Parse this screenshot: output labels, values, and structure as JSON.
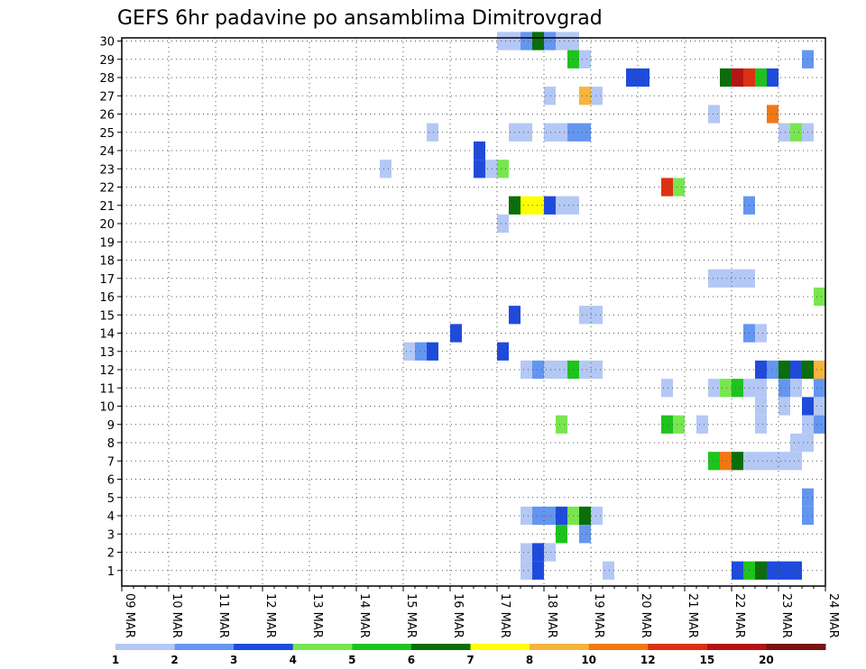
{
  "chart_data": {
    "type": "heatmap",
    "title": "GEFS 6hr padavine po ansamblima Dimitrovgrad",
    "xlabel": "",
    "ylabel": "",
    "x_tick_labels": [
      "09 MAR",
      "10 MAR",
      "11 MAR",
      "12 MAR",
      "13 MAR",
      "14 MAR",
      "15 MAR",
      "16 MAR",
      "17 MAR",
      "18 MAR",
      "19 MAR",
      "20 MAR",
      "21 MAR",
      "22 MAR",
      "23 MAR",
      "24 MAR"
    ],
    "y_tick_labels": [
      "1",
      "2",
      "3",
      "4",
      "5",
      "6",
      "7",
      "8",
      "9",
      "10",
      "11",
      "12",
      "13",
      "14",
      "15",
      "16",
      "17",
      "18",
      "19",
      "20",
      "21",
      "22",
      "23",
      "24",
      "25",
      "26",
      "27",
      "28",
      "29",
      "30"
    ],
    "x_unit": "6h steps from 09 MAR 00Z (4 steps per day)",
    "y_unit": "ensemble member",
    "colorbar": {
      "labels": [
        "1",
        "2",
        "3",
        "4",
        "5",
        "6",
        "7",
        "8",
        "10",
        "12",
        "15",
        "20"
      ],
      "bin_colors": [
        "#b4c8f5",
        "#6496f0",
        "#1e4bdc",
        "#78e650",
        "#1ec31e",
        "#0a6e0a",
        "#ffff00",
        "#f5b43c",
        "#f07814",
        "#dc3214",
        "#b41414",
        "#781414"
      ]
    },
    "cells": [
      {
        "member": 30,
        "step": 33,
        "level": 1
      },
      {
        "member": 30,
        "step": 34,
        "level": 1
      },
      {
        "member": 30,
        "step": 35,
        "level": 2
      },
      {
        "member": 30,
        "step": 36,
        "level": 6
      },
      {
        "member": 30,
        "step": 37,
        "level": 2
      },
      {
        "member": 30,
        "step": 38,
        "level": 1
      },
      {
        "member": 30,
        "step": 39,
        "level": 1
      },
      {
        "member": 29,
        "step": 39,
        "level": 5
      },
      {
        "member": 29,
        "step": 40,
        "level": 1
      },
      {
        "member": 29,
        "step": 59,
        "level": 2
      },
      {
        "member": 28,
        "step": 44,
        "level": 3
      },
      {
        "member": 28,
        "step": 45,
        "level": 3
      },
      {
        "member": 28,
        "step": 52,
        "level": 6
      },
      {
        "member": 28,
        "step": 53,
        "level": 11
      },
      {
        "member": 28,
        "step": 54,
        "level": 10
      },
      {
        "member": 28,
        "step": 55,
        "level": 5
      },
      {
        "member": 28,
        "step": 56,
        "level": 3
      },
      {
        "member": 27,
        "step": 37,
        "level": 1
      },
      {
        "member": 27,
        "step": 40,
        "level": 8
      },
      {
        "member": 27,
        "step": 41,
        "level": 1
      },
      {
        "member": 26,
        "step": 51,
        "level": 1
      },
      {
        "member": 26,
        "step": 56,
        "level": 9
      },
      {
        "member": 25,
        "step": 27,
        "level": 1
      },
      {
        "member": 25,
        "step": 34,
        "level": 1
      },
      {
        "member": 25,
        "step": 35,
        "level": 1
      },
      {
        "member": 25,
        "step": 37,
        "level": 1
      },
      {
        "member": 25,
        "step": 38,
        "level": 1
      },
      {
        "member": 25,
        "step": 39,
        "level": 2
      },
      {
        "member": 25,
        "step": 40,
        "level": 2
      },
      {
        "member": 25,
        "step": 57,
        "level": 1
      },
      {
        "member": 25,
        "step": 58,
        "level": 4
      },
      {
        "member": 25,
        "step": 59,
        "level": 1
      },
      {
        "member": 24,
        "step": 31,
        "level": 3
      },
      {
        "member": 23,
        "step": 23,
        "level": 1
      },
      {
        "member": 23,
        "step": 31,
        "level": 3
      },
      {
        "member": 23,
        "step": 32,
        "level": 1
      },
      {
        "member": 23,
        "step": 33,
        "level": 4
      },
      {
        "member": 22,
        "step": 47,
        "level": 10
      },
      {
        "member": 22,
        "step": 48,
        "level": 4
      },
      {
        "member": 21,
        "step": 34,
        "level": 6
      },
      {
        "member": 21,
        "step": 35,
        "level": 7
      },
      {
        "member": 21,
        "step": 36,
        "level": 7
      },
      {
        "member": 21,
        "step": 37,
        "level": 3
      },
      {
        "member": 21,
        "step": 38,
        "level": 1
      },
      {
        "member": 21,
        "step": 39,
        "level": 1
      },
      {
        "member": 21,
        "step": 54,
        "level": 2
      },
      {
        "member": 20,
        "step": 33,
        "level": 1
      },
      {
        "member": 17,
        "step": 51,
        "level": 1
      },
      {
        "member": 17,
        "step": 52,
        "level": 1
      },
      {
        "member": 17,
        "step": 53,
        "level": 1
      },
      {
        "member": 17,
        "step": 54,
        "level": 1
      },
      {
        "member": 16,
        "step": 60,
        "level": 4
      },
      {
        "member": 15,
        "step": 34,
        "level": 3
      },
      {
        "member": 15,
        "step": 40,
        "level": 1
      },
      {
        "member": 15,
        "step": 41,
        "level": 1
      },
      {
        "member": 14,
        "step": 29,
        "level": 3
      },
      {
        "member": 14,
        "step": 54,
        "level": 2
      },
      {
        "member": 14,
        "step": 55,
        "level": 1
      },
      {
        "member": 13,
        "step": 25,
        "level": 1
      },
      {
        "member": 13,
        "step": 26,
        "level": 2
      },
      {
        "member": 13,
        "step": 27,
        "level": 3
      },
      {
        "member": 13,
        "step": 33,
        "level": 3
      },
      {
        "member": 12,
        "step": 35,
        "level": 1
      },
      {
        "member": 12,
        "step": 36,
        "level": 2
      },
      {
        "member": 12,
        "step": 37,
        "level": 1
      },
      {
        "member": 12,
        "step": 38,
        "level": 1
      },
      {
        "member": 12,
        "step": 39,
        "level": 5
      },
      {
        "member": 12,
        "step": 40,
        "level": 1
      },
      {
        "member": 12,
        "step": 41,
        "level": 1
      },
      {
        "member": 12,
        "step": 55,
        "level": 3
      },
      {
        "member": 12,
        "step": 56,
        "level": 2
      },
      {
        "member": 12,
        "step": 57,
        "level": 6
      },
      {
        "member": 12,
        "step": 58,
        "level": 3
      },
      {
        "member": 12,
        "step": 59,
        "level": 6
      },
      {
        "member": 12,
        "step": 60,
        "level": 8
      },
      {
        "member": 11,
        "step": 47,
        "level": 1
      },
      {
        "member": 11,
        "step": 51,
        "level": 1
      },
      {
        "member": 11,
        "step": 52,
        "level": 4
      },
      {
        "member": 11,
        "step": 53,
        "level": 5
      },
      {
        "member": 11,
        "step": 54,
        "level": 1
      },
      {
        "member": 11,
        "step": 55,
        "level": 1
      },
      {
        "member": 11,
        "step": 57,
        "level": 2
      },
      {
        "member": 11,
        "step": 58,
        "level": 1
      },
      {
        "member": 11,
        "step": 60,
        "level": 2
      },
      {
        "member": 10,
        "step": 55,
        "level": 1
      },
      {
        "member": 10,
        "step": 57,
        "level": 1
      },
      {
        "member": 10,
        "step": 59,
        "level": 3
      },
      {
        "member": 10,
        "step": 60,
        "level": 1
      },
      {
        "member": 9,
        "step": 38,
        "level": 4
      },
      {
        "member": 9,
        "step": 47,
        "level": 5
      },
      {
        "member": 9,
        "step": 48,
        "level": 4
      },
      {
        "member": 9,
        "step": 50,
        "level": 1
      },
      {
        "member": 9,
        "step": 55,
        "level": 1
      },
      {
        "member": 9,
        "step": 59,
        "level": 1
      },
      {
        "member": 9,
        "step": 60,
        "level": 2
      },
      {
        "member": 8,
        "step": 58,
        "level": 1
      },
      {
        "member": 8,
        "step": 59,
        "level": 1
      },
      {
        "member": 7,
        "step": 51,
        "level": 5
      },
      {
        "member": 7,
        "step": 52,
        "level": 9
      },
      {
        "member": 7,
        "step": 53,
        "level": 6
      },
      {
        "member": 7,
        "step": 54,
        "level": 1
      },
      {
        "member": 7,
        "step": 55,
        "level": 1
      },
      {
        "member": 7,
        "step": 56,
        "level": 1
      },
      {
        "member": 7,
        "step": 57,
        "level": 1
      },
      {
        "member": 7,
        "step": 58,
        "level": 1
      },
      {
        "member": 5,
        "step": 59,
        "level": 2
      },
      {
        "member": 4,
        "step": 35,
        "level": 1
      },
      {
        "member": 4,
        "step": 36,
        "level": 2
      },
      {
        "member": 4,
        "step": 37,
        "level": 2
      },
      {
        "member": 4,
        "step": 38,
        "level": 3
      },
      {
        "member": 4,
        "step": 39,
        "level": 4
      },
      {
        "member": 4,
        "step": 40,
        "level": 6
      },
      {
        "member": 4,
        "step": 41,
        "level": 1
      },
      {
        "member": 4,
        "step": 59,
        "level": 2
      },
      {
        "member": 3,
        "step": 38,
        "level": 5
      },
      {
        "member": 3,
        "step": 40,
        "level": 2
      },
      {
        "member": 2,
        "step": 35,
        "level": 1
      },
      {
        "member": 2,
        "step": 36,
        "level": 3
      },
      {
        "member": 2,
        "step": 37,
        "level": 1
      },
      {
        "member": 1,
        "step": 35,
        "level": 1
      },
      {
        "member": 1,
        "step": 36,
        "level": 3
      },
      {
        "member": 1,
        "step": 42,
        "level": 1
      },
      {
        "member": 1,
        "step": 53,
        "level": 3
      },
      {
        "member": 1,
        "step": 54,
        "level": 5
      },
      {
        "member": 1,
        "step": 55,
        "level": 6
      },
      {
        "member": 1,
        "step": 56,
        "level": 3
      },
      {
        "member": 1,
        "step": 57,
        "level": 3
      },
      {
        "member": 1,
        "step": 58,
        "level": 3
      }
    ]
  }
}
